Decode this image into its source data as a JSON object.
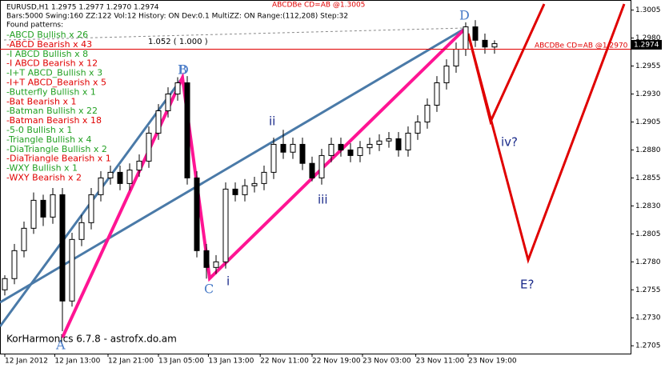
{
  "header": [
    "EURUSD,H1 1.2975 1.2977 1.2970 1.2974",
    "Bars:5000 Swing:160 ZZ:122 Vol:12 History: ON Dev:0.1 MultiZZ: ON Range:(112,208) Step:32",
    "Found patterns:"
  ],
  "patterns": [
    {
      "text": "-ABCD Bullish x 26",
      "color": "#22a022"
    },
    {
      "text": "-ABCD Bearish x 43",
      "color": "#e00000"
    },
    {
      "text": "-I ABCD Bullish x 8",
      "color": "#22a022"
    },
    {
      "text": "-I ABCD Bearish x 12",
      "color": "#e00000"
    },
    {
      "text": "-I+T ABCD_Bullish x 3",
      "color": "#22a022"
    },
    {
      "text": "-I+T ABCD_Bearish x 5",
      "color": "#e00000"
    },
    {
      "text": "-Butterfly Bullish x 1",
      "color": "#22a022"
    },
    {
      "text": "-Bat Bearish x 1",
      "color": "#e00000"
    },
    {
      "text": "-Batman Bullish x 22",
      "color": "#22a022"
    },
    {
      "text": "-Batman Bearish x 18",
      "color": "#e00000"
    },
    {
      "text": "-5-0 Bullish x 1",
      "color": "#22a022"
    },
    {
      "text": "-Triangle Bullish x 4",
      "color": "#22a022"
    },
    {
      "text": "-DiaTriangle Bullish x 2",
      "color": "#22a022"
    },
    {
      "text": "-DiaTriangle Bearish x 1",
      "color": "#e00000"
    },
    {
      "text": "-WXY Bullish x 1",
      "color": "#22a022"
    },
    {
      "text": "-WXY Bearish x 2",
      "color": "#e00000"
    }
  ],
  "top_note": "ABCDBe CD=AB   @1.3005",
  "ratio": "1.052 ( 1.000 )",
  "target_label": "ABCDBe CD=AB   @1.2970",
  "footer": "KorHarmonics 6.7.8 - astrofx.do.am",
  "points": {
    "A": "A",
    "B": "B",
    "C": "C",
    "D1": "D",
    "D2": "D",
    "i": "i",
    "ii": "ii",
    "iii": "iii",
    "iv": "iv?",
    "E": "E?"
  },
  "chart_data": {
    "type": "candlestick",
    "ylim": [
      1.2698,
      1.3014
    ],
    "xlim": [
      -0.5,
      65.17
    ],
    "yticks": [
      1.3005,
      {
        "value": 1.298,
        "label": "1.2980"
      },
      1.2955,
      {
        "value": 1.293,
        "label": "1.2930"
      },
      1.2905,
      {
        "value": 1.288,
        "label": "1.2880"
      },
      1.2855,
      {
        "value": 1.283,
        "label": "1.2830"
      },
      1.2805,
      {
        "value": 1.278,
        "label": "1.2780"
      },
      1.2755,
      {
        "value": 1.273,
        "label": "1.2730"
      },
      1.2705
    ],
    "xticks": [
      {
        "value": 0,
        "label": "12 Jan 2012"
      },
      {
        "value": 5.2,
        "label": "12 Jan 13:00"
      },
      {
        "value": 10.75,
        "label": "12 Jan 21:00"
      },
      {
        "value": 16,
        "label": "13 Jan 05:00"
      },
      {
        "value": 21.2,
        "label": "13 Jan 13:00"
      },
      {
        "value": 26.6,
        "label": "22 Nov 11:00"
      },
      {
        "value": 32,
        "label": "22 Nov 19:00"
      },
      {
        "value": 37.25,
        "label": "23 Nov 03:00"
      },
      {
        "value": 42.8,
        "label": "23 Nov 11:00"
      },
      {
        "value": 48.25,
        "label": "23 Nov 19:00"
      }
    ],
    "target": {
      "value": 1.297,
      "color": "#e00000"
    },
    "last_price": {
      "value": 1.2974,
      "label": "1.2974"
    },
    "candles": [
      [
        1.2755,
        1.2768,
        1.275,
        1.2765
      ],
      [
        1.2765,
        1.2796,
        1.276,
        1.279
      ],
      [
        1.279,
        1.2816,
        1.2784,
        1.281
      ],
      [
        1.281,
        1.2842,
        1.2805,
        1.2835
      ],
      [
        1.2835,
        1.284,
        1.2812,
        1.282
      ],
      [
        1.282,
        1.2846,
        1.2814,
        1.284
      ],
      [
        1.284,
        1.2846,
        1.2718,
        1.2745
      ],
      [
        1.2745,
        1.2806,
        1.274,
        1.28
      ],
      [
        1.28,
        1.2822,
        1.2794,
        1.2815
      ],
      [
        1.2815,
        1.2846,
        1.2809,
        1.284
      ],
      [
        1.284,
        1.2861,
        1.2834,
        1.2855
      ],
      [
        1.2855,
        1.2866,
        1.2849,
        1.286
      ],
      [
        1.286,
        1.2866,
        1.2844,
        1.285
      ],
      [
        1.285,
        1.2868,
        1.2844,
        1.2862
      ],
      [
        1.2862,
        1.2876,
        1.2856,
        1.287
      ],
      [
        1.287,
        1.2901,
        1.2864,
        1.2895
      ],
      [
        1.2895,
        1.2921,
        1.2889,
        1.2915
      ],
      [
        1.2915,
        1.2936,
        1.2909,
        1.293
      ],
      [
        1.293,
        1.2945,
        1.2924,
        1.294
      ],
      [
        1.294,
        1.2946,
        1.2849,
        1.2855
      ],
      [
        1.2855,
        1.2861,
        1.2784,
        1.279
      ],
      [
        1.279,
        1.2796,
        1.2765,
        1.2775
      ],
      [
        1.2775,
        1.2786,
        1.2769,
        1.278
      ],
      [
        1.278,
        1.2851,
        1.2774,
        1.2845
      ],
      [
        1.2845,
        1.2851,
        1.2834,
        1.284
      ],
      [
        1.284,
        1.2854,
        1.2834,
        1.2848
      ],
      [
        1.2848,
        1.2856,
        1.2842,
        1.285
      ],
      [
        1.285,
        1.2866,
        1.2844,
        1.286
      ],
      [
        1.286,
        1.2891,
        1.2854,
        1.2885
      ],
      [
        1.2885,
        1.2898,
        1.2872,
        1.2878
      ],
      [
        1.2878,
        1.2891,
        1.2872,
        1.2885
      ],
      [
        1.2885,
        1.2891,
        1.2862,
        1.2868
      ],
      [
        1.2868,
        1.2874,
        1.2852,
        1.2855
      ],
      [
        1.2855,
        1.2881,
        1.2849,
        1.2875
      ],
      [
        1.2875,
        1.2891,
        1.2869,
        1.2885
      ],
      [
        1.2885,
        1.2891,
        1.2874,
        1.288
      ],
      [
        1.288,
        1.2886,
        1.2869,
        1.2875
      ],
      [
        1.2875,
        1.2888,
        1.2869,
        1.2882
      ],
      [
        1.2882,
        1.2891,
        1.2876,
        1.2885
      ],
      [
        1.2885,
        1.2894,
        1.2879,
        1.2888
      ],
      [
        1.2888,
        1.2896,
        1.2882,
        1.289
      ],
      [
        1.289,
        1.2896,
        1.2874,
        1.288
      ],
      [
        1.288,
        1.2901,
        1.2874,
        1.2895
      ],
      [
        1.2895,
        1.2911,
        1.2889,
        1.2905
      ],
      [
        1.2905,
        1.2926,
        1.2899,
        1.292
      ],
      [
        1.292,
        1.2946,
        1.2914,
        1.294
      ],
      [
        1.294,
        1.2961,
        1.2934,
        1.2955
      ],
      [
        1.2955,
        1.2976,
        1.2949,
        1.297
      ],
      [
        1.297,
        1.2994,
        1.2964,
        1.299
      ],
      [
        1.299,
        1.2996,
        1.2972,
        1.2978
      ],
      [
        1.2978,
        1.2984,
        1.2966,
        1.2972
      ],
      [
        1.2972,
        1.2978,
        1.2966,
        1.2975
      ]
    ]
  }
}
